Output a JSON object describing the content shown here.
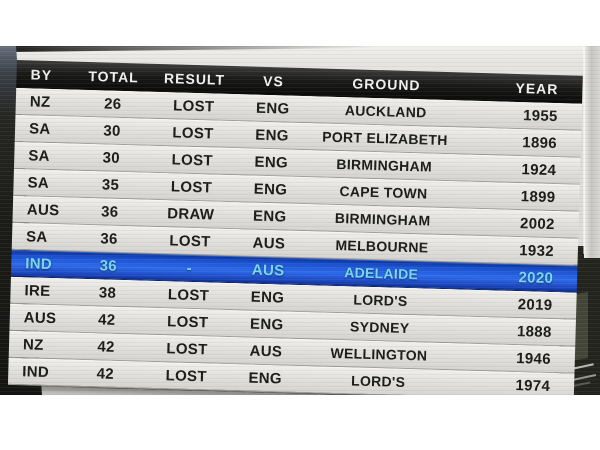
{
  "table": {
    "columns": [
      {
        "label": "BY"
      },
      {
        "label": "TOTAL"
      },
      {
        "label": "RESULT"
      },
      {
        "label": "VS"
      },
      {
        "label": "GROUND"
      },
      {
        "label": "YEAR"
      }
    ],
    "rows": [
      {
        "by": "NZ",
        "total": "26",
        "result": "LOST",
        "vs": "ENG",
        "ground": "AUCKLAND",
        "year": "1955",
        "highlighted": false
      },
      {
        "by": "SA",
        "total": "30",
        "result": "LOST",
        "vs": "ENG",
        "ground": "PORT ELIZABETH",
        "year": "1896",
        "highlighted": false
      },
      {
        "by": "SA",
        "total": "30",
        "result": "LOST",
        "vs": "ENG",
        "ground": "BIRMINGHAM",
        "year": "1924",
        "highlighted": false
      },
      {
        "by": "SA",
        "total": "35",
        "result": "LOST",
        "vs": "ENG",
        "ground": "CAPE TOWN",
        "year": "1899",
        "highlighted": false
      },
      {
        "by": "AUS",
        "total": "36",
        "result": "DRAW",
        "vs": "ENG",
        "ground": "BIRMINGHAM",
        "year": "2002",
        "highlighted": false
      },
      {
        "by": "SA",
        "total": "36",
        "result": "LOST",
        "vs": "AUS",
        "ground": "MELBOURNE",
        "year": "1932",
        "highlighted": false
      },
      {
        "by": "IND",
        "total": "36",
        "result": "-",
        "vs": "AUS",
        "ground": "ADELAIDE",
        "year": "2020",
        "highlighted": true
      },
      {
        "by": "IRE",
        "total": "38",
        "result": "LOST",
        "vs": "ENG",
        "ground": "LORD'S",
        "year": "2019",
        "highlighted": false
      },
      {
        "by": "AUS",
        "total": "42",
        "result": "LOST",
        "vs": "ENG",
        "ground": "SYDNEY",
        "year": "1888",
        "highlighted": false
      },
      {
        "by": "NZ",
        "total": "42",
        "result": "LOST",
        "vs": "AUS",
        "ground": "WELLINGTON",
        "year": "1946",
        "highlighted": false
      },
      {
        "by": "IND",
        "total": "42",
        "result": "LOST",
        "vs": "ENG",
        "ground": "LORD'S",
        "year": "1974",
        "highlighted": false
      }
    ],
    "colors": {
      "header_bg": "#1a1a18",
      "header_text": "#f1f1ef",
      "row_bg": "#e2e1de",
      "row_text": "#1b1b19",
      "highlight_bg": "#2e6beb",
      "highlight_text": "#79d9ec"
    }
  }
}
